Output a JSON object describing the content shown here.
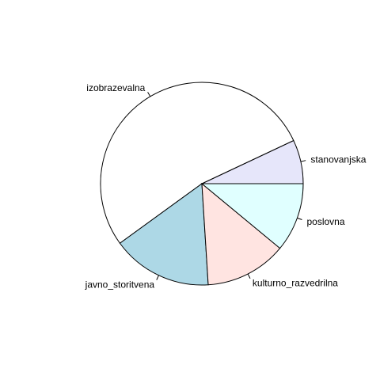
{
  "chart_data": {
    "type": "pie",
    "title": "",
    "start_angle_deg": 0,
    "direction": "counterclockwise",
    "slices": [
      {
        "label": "stanovanjska",
        "value": 7,
        "color": "#e6e6fa"
      },
      {
        "label": "izobrazevalna",
        "value": 53,
        "color": "#ffffff"
      },
      {
        "label": "javno_storitvena",
        "value": 16,
        "color": "#add8e6"
      },
      {
        "label": "kulturno_razvedrilna",
        "value": 13,
        "color": "#ffe4e1"
      },
      {
        "label": "poslovna",
        "value": 11,
        "color": "#e0ffff"
      }
    ]
  }
}
